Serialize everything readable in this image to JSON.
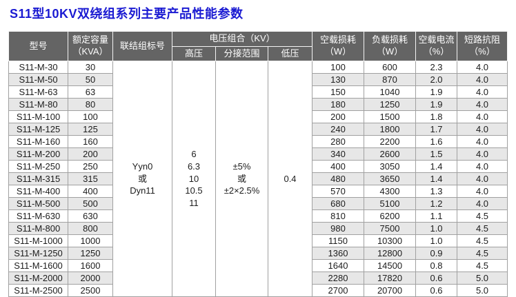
{
  "page": {
    "title": "S11型10KV双绕组系列主要产品性能参数"
  },
  "colors": {
    "title": "#1a1ad2",
    "header_bg": "#646464",
    "stripe": "#e7e7e7",
    "border": "#a0a0a0"
  },
  "table": {
    "headers": {
      "model": "型号",
      "capacity": "额定容量\n（KVA）",
      "connection": "联结组标号",
      "voltage_group": "电压组合（KV）",
      "high_voltage": "高压",
      "tap_range": "分接范围",
      "low_voltage": "低压",
      "no_load_loss": "空载损耗\n（W）",
      "load_loss": "负载损耗\n（W）",
      "no_load_current": "空载电流\n（%）",
      "short_circuit": "短路抗阻\n（%）"
    },
    "merged": {
      "connection": "Yyn0\n或\nDyn11",
      "high_voltage": "6\n6.3\n10\n10.5\n11",
      "tap_range": "±5%\n或\n±2×2.5%",
      "low_voltage": "0.4"
    },
    "rows": [
      {
        "model": "S11-M-30",
        "capacity": "30",
        "no_load_loss": "100",
        "load_loss": "600",
        "no_load_current": "2.3",
        "short_circuit": "4.0"
      },
      {
        "model": "S11-M-50",
        "capacity": "50",
        "no_load_loss": "130",
        "load_loss": "870",
        "no_load_current": "2.0",
        "short_circuit": "4.0"
      },
      {
        "model": "S11-M-63",
        "capacity": "63",
        "no_load_loss": "150",
        "load_loss": "1040",
        "no_load_current": "1.9",
        "short_circuit": "4.0"
      },
      {
        "model": "S11-M-80",
        "capacity": "80",
        "no_load_loss": "180",
        "load_loss": "1250",
        "no_load_current": "1.9",
        "short_circuit": "4.0"
      },
      {
        "model": "S11-M-100",
        "capacity": "100",
        "no_load_loss": "200",
        "load_loss": "1500",
        "no_load_current": "1.8",
        "short_circuit": "4.0"
      },
      {
        "model": "S11-M-125",
        "capacity": "125",
        "no_load_loss": "240",
        "load_loss": "1800",
        "no_load_current": "1.7",
        "short_circuit": "4.0"
      },
      {
        "model": "S11-M-160",
        "capacity": "160",
        "no_load_loss": "280",
        "load_loss": "2200",
        "no_load_current": "1.6",
        "short_circuit": "4.0"
      },
      {
        "model": "S11-M-200",
        "capacity": "200",
        "no_load_loss": "340",
        "load_loss": "2600",
        "no_load_current": "1.5",
        "short_circuit": "4.0"
      },
      {
        "model": "S11-M-250",
        "capacity": "250",
        "no_load_loss": "400",
        "load_loss": "3050",
        "no_load_current": "1.4",
        "short_circuit": "4.0"
      },
      {
        "model": "S11-M-315",
        "capacity": "315",
        "no_load_loss": "480",
        "load_loss": "3650",
        "no_load_current": "1.4",
        "short_circuit": "4.0"
      },
      {
        "model": "S11-M-400",
        "capacity": "400",
        "no_load_loss": "570",
        "load_loss": "4300",
        "no_load_current": "1.3",
        "short_circuit": "4.0"
      },
      {
        "model": "S11-M-500",
        "capacity": "500",
        "no_load_loss": "680",
        "load_loss": "5100",
        "no_load_current": "1.2",
        "short_circuit": "4.0"
      },
      {
        "model": "S11-M-630",
        "capacity": "630",
        "no_load_loss": "810",
        "load_loss": "6200",
        "no_load_current": "1.1",
        "short_circuit": "4.5"
      },
      {
        "model": "S11-M-800",
        "capacity": "800",
        "no_load_loss": "980",
        "load_loss": "7500",
        "no_load_current": "1.0",
        "short_circuit": "4.5"
      },
      {
        "model": "S11-M-1000",
        "capacity": "1000",
        "no_load_loss": "1150",
        "load_loss": "10300",
        "no_load_current": "1.0",
        "short_circuit": "4.5"
      },
      {
        "model": "S11-M-1250",
        "capacity": "1250",
        "no_load_loss": "1360",
        "load_loss": "12800",
        "no_load_current": "0.9",
        "short_circuit": "4.5"
      },
      {
        "model": "S11-M-1600",
        "capacity": "1600",
        "no_load_loss": "1640",
        "load_loss": "14500",
        "no_load_current": "0.8",
        "short_circuit": "4.5"
      },
      {
        "model": "S11-M-2000",
        "capacity": "2000",
        "no_load_loss": "2280",
        "load_loss": "17820",
        "no_load_current": "0.6",
        "short_circuit": "5.0"
      },
      {
        "model": "S11-M-2500",
        "capacity": "2500",
        "no_load_loss": "2700",
        "load_loss": "20700",
        "no_load_current": "0.6",
        "short_circuit": "5.0"
      }
    ]
  }
}
